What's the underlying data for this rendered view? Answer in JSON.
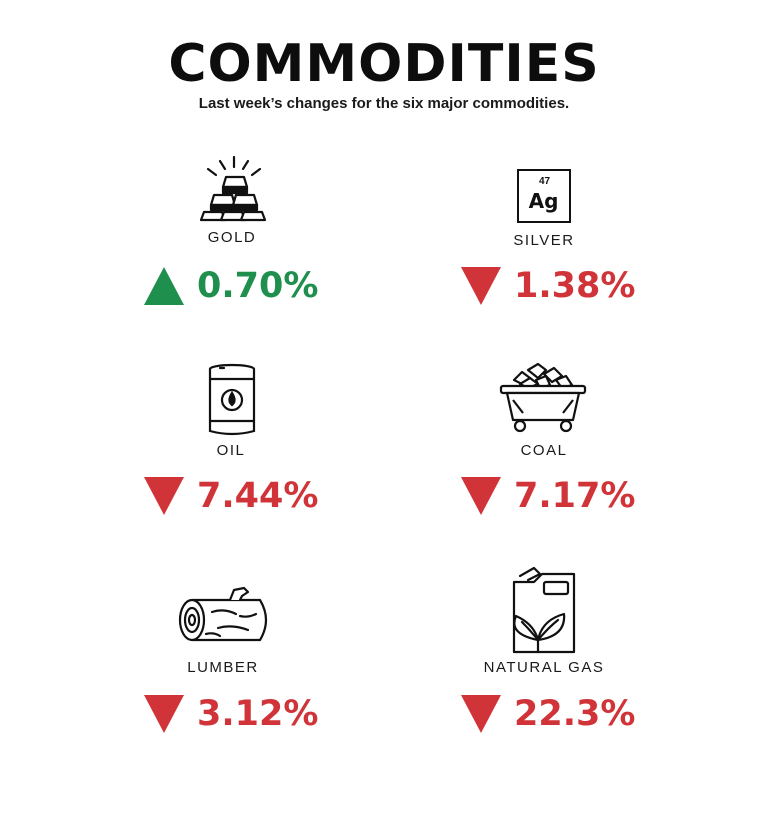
{
  "header": {
    "title": "COMMODITIES",
    "subtitle": "Last week’s changes for the six major commodities."
  },
  "colors": {
    "up": "#1f8f4e",
    "down": "#d13438",
    "ink": "#111111"
  },
  "commodities": [
    {
      "name": "GOLD",
      "change": "0.70%",
      "direction": "up",
      "icon": "gold-bars-icon"
    },
    {
      "name": "SILVER",
      "change": "1.38%",
      "direction": "down",
      "icon": "silver-element-icon",
      "element_number": "47",
      "element_symbol": "Ag"
    },
    {
      "name": "OIL",
      "change": "7.44%",
      "direction": "down",
      "icon": "oil-barrel-icon"
    },
    {
      "name": "COAL",
      "change": "7.17%",
      "direction": "down",
      "icon": "coal-cart-icon"
    },
    {
      "name": "LUMBER",
      "change": "3.12%",
      "direction": "down",
      "icon": "log-icon"
    },
    {
      "name": "NATURAL GAS",
      "change": "22.3%",
      "direction": "down",
      "icon": "gas-canister-icon"
    }
  ]
}
